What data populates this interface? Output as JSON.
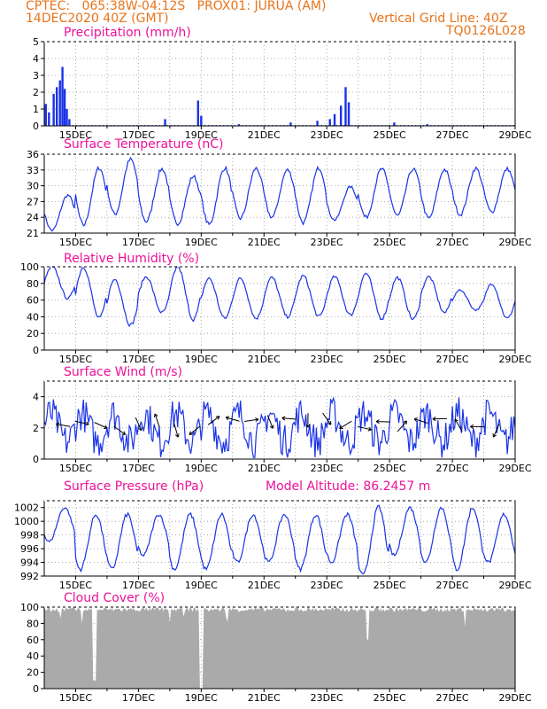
{
  "header": {
    "line1_left": "CPTEC:   065:38W-04:12S   PROX01: JURUA (AM)",
    "line2_left": "14DEC2020 40Z (GMT)",
    "line1_right": "Vertical Grid Line: 40Z",
    "line2_right": "TQ0126L028"
  },
  "colors": {
    "header": "#e8731a",
    "title": "#ee1199",
    "line": "#1a33e6",
    "cloud": "#aaaaaa"
  },
  "x_tick_labels": [
    "15DEC",
    "17DEC",
    "19DEC",
    "21DEC",
    "23DEC",
    "25DEC",
    "27DEC",
    "29DEC"
  ],
  "chart_data": [
    {
      "type": "bar",
      "title": "Precipitation (mm/h)",
      "ylim": [
        0,
        5
      ],
      "yticks": [
        0,
        1,
        2,
        3,
        4,
        5
      ],
      "x_range_days": [
        14.0,
        29.0
      ],
      "bursts": [
        {
          "day": 14.05,
          "value": 1.3
        },
        {
          "day": 14.15,
          "value": 0.8
        },
        {
          "day": 14.3,
          "value": 1.9
        },
        {
          "day": 14.4,
          "value": 2.3
        },
        {
          "day": 14.5,
          "value": 2.7
        },
        {
          "day": 14.58,
          "value": 3.5
        },
        {
          "day": 14.65,
          "value": 2.2
        },
        {
          "day": 14.72,
          "value": 1.0
        },
        {
          "day": 14.8,
          "value": 0.4
        },
        {
          "day": 17.85,
          "value": 0.4
        },
        {
          "day": 18.9,
          "value": 1.5
        },
        {
          "day": 19.0,
          "value": 0.6
        },
        {
          "day": 20.2,
          "value": 0.1
        },
        {
          "day": 21.85,
          "value": 0.2
        },
        {
          "day": 22.7,
          "value": 0.3
        },
        {
          "day": 23.1,
          "value": 0.4
        },
        {
          "day": 23.25,
          "value": 0.7
        },
        {
          "day": 23.45,
          "value": 1.2
        },
        {
          "day": 23.6,
          "value": 2.3
        },
        {
          "day": 23.7,
          "value": 1.4
        },
        {
          "day": 25.15,
          "value": 0.2
        },
        {
          "day": 26.2,
          "value": 0.1
        }
      ]
    },
    {
      "type": "line",
      "title": "Surface Temperature (nC)",
      "ylim": [
        21,
        36
      ],
      "yticks": [
        21,
        24,
        27,
        30,
        33,
        36
      ],
      "daily_min": [
        21.5,
        22.5,
        24.6,
        23.2,
        22.8,
        22.6,
        23.8,
        24.0,
        23.0,
        23.5,
        24.0,
        24.3,
        23.8,
        24.5,
        25.0
      ],
      "daily_max": [
        28.2,
        33.4,
        35.0,
        33.2,
        31.8,
        33.4,
        33.3,
        33.0,
        33.4,
        29.8,
        33.2,
        33.2,
        33.1,
        33.3,
        33.2
      ]
    },
    {
      "type": "line",
      "title": "Relative Humidity (%)",
      "ylim": [
        0,
        100
      ],
      "yticks": [
        0,
        20,
        40,
        60,
        80,
        100
      ],
      "daily_min": [
        62,
        38,
        30,
        45,
        37,
        38,
        38,
        40,
        40,
        42,
        38,
        37,
        45,
        48,
        38
      ],
      "daily_max": [
        100,
        100,
        85,
        88,
        100,
        86,
        86,
        87,
        89,
        88,
        92,
        87,
        88,
        72,
        80
      ]
    },
    {
      "type": "line",
      "title": "Surface Wind (m/s)",
      "ylim": [
        0,
        5
      ],
      "yticks": [
        0,
        2,
        4
      ],
      "mean": 2.0,
      "max": 4.8
    },
    {
      "type": "line",
      "title": "Surface Pressure (hPa)",
      "annotation": "Model Altitude: 86.2457 m",
      "ylim": [
        992,
        1003
      ],
      "yticks": [
        992,
        994,
        996,
        998,
        1000,
        1002
      ],
      "daily_min": [
        997,
        993,
        993,
        995,
        993,
        993,
        994,
        994,
        993,
        994,
        992,
        995,
        994,
        993,
        994
      ],
      "daily_max": [
        1002,
        1001,
        1001,
        1001,
        1001,
        1001,
        1001,
        1001,
        1001,
        1001,
        1002,
        1002,
        1002,
        1002,
        1001
      ]
    },
    {
      "type": "area",
      "title": "Cloud Cover (%)",
      "ylim": [
        0,
        100
      ],
      "yticks": [
        0,
        20,
        40,
        60,
        80,
        100
      ],
      "typical": 97,
      "min_dips": [
        {
          "day": 15.6,
          "value": 10
        },
        {
          "day": 19.0,
          "value": 0
        },
        {
          "day": 24.3,
          "value": 60
        }
      ]
    }
  ]
}
